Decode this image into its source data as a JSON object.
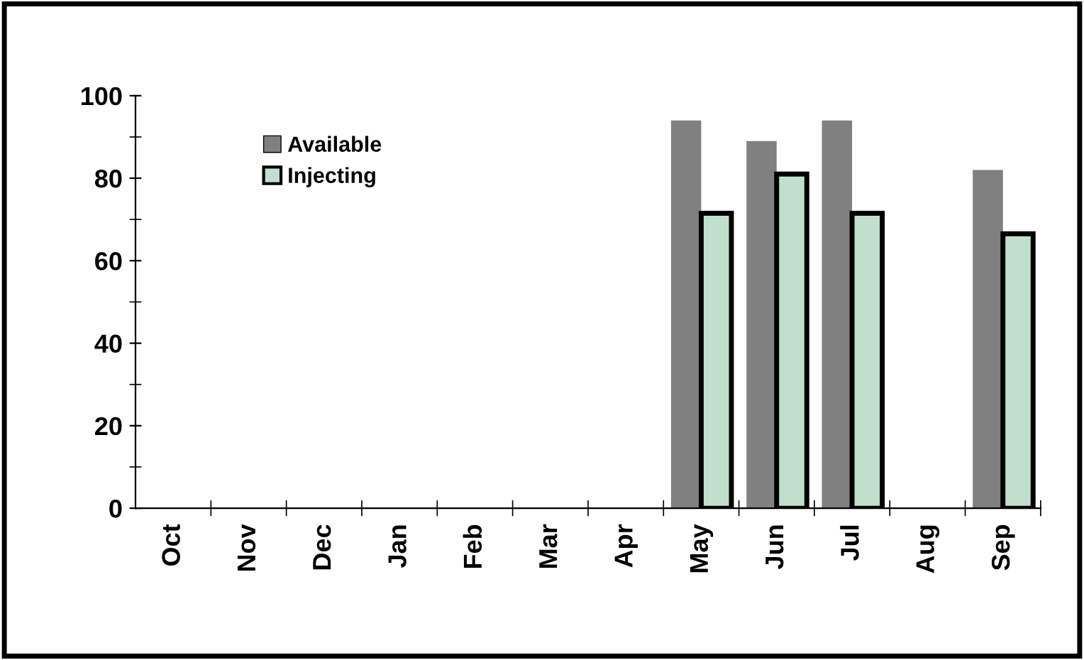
{
  "chart_data": {
    "type": "bar",
    "categories": [
      "Oct",
      "Nov",
      "Dec",
      "Jan",
      "Feb",
      "Mar",
      "Apr",
      "May",
      "Jun",
      "Jul",
      "Aug",
      "Sep"
    ],
    "series": [
      {
        "name": "Available",
        "color": "#808080",
        "values": [
          null,
          null,
          null,
          null,
          null,
          null,
          null,
          94,
          89,
          94,
          null,
          82
        ]
      },
      {
        "name": "Injecting",
        "color": "#c0e0cc",
        "values": [
          null,
          null,
          null,
          null,
          null,
          null,
          null,
          71.5,
          81,
          71.5,
          null,
          66.5
        ]
      }
    ],
    "ylim": [
      0,
      100
    ],
    "yticks": [
      0,
      20,
      40,
      60,
      80,
      100
    ],
    "grid": false,
    "legend": "top left"
  }
}
